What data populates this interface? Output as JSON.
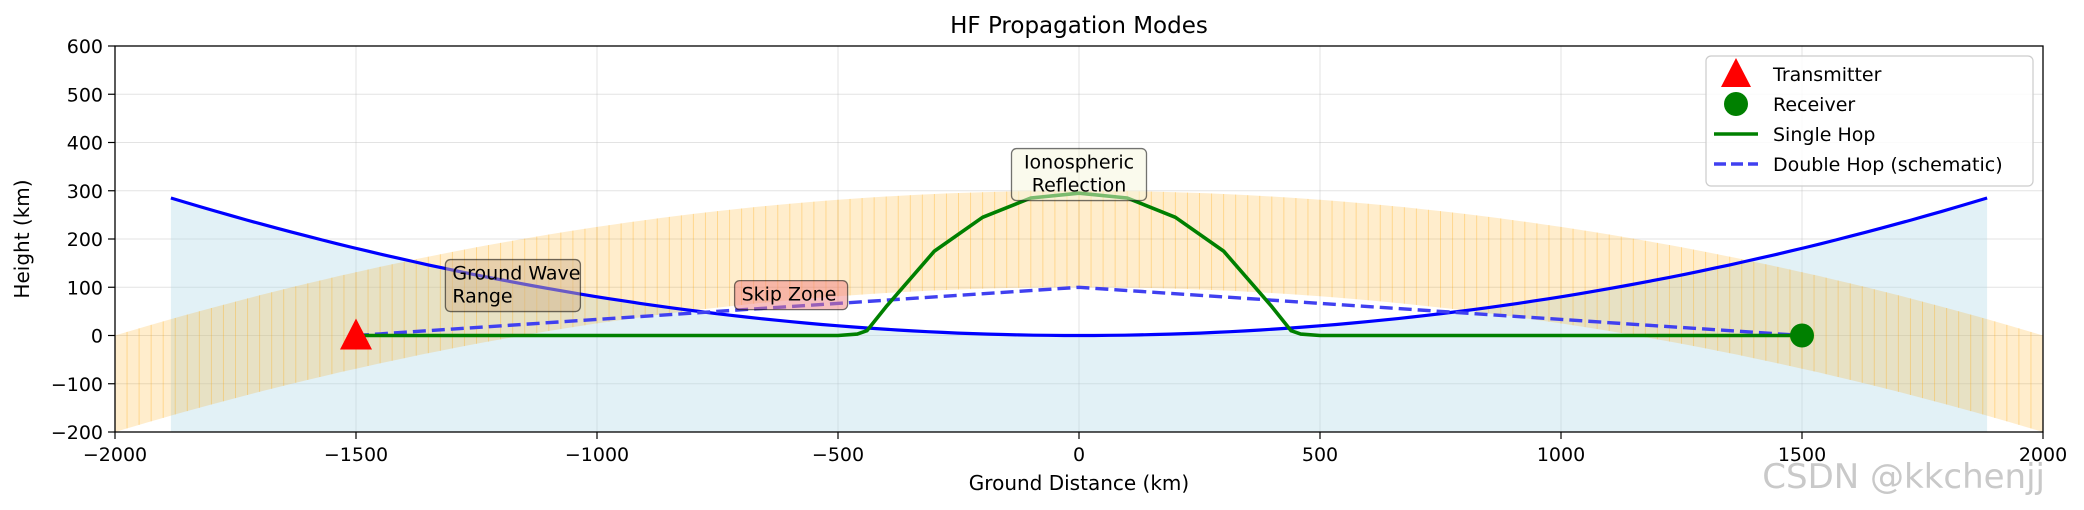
{
  "chart_data": {
    "type": "line",
    "title": "HF Propagation Modes",
    "xlabel": "Ground Distance (km)",
    "ylabel": "Height (km)",
    "xlim": [
      -2000,
      2000
    ],
    "ylim": [
      -200,
      600
    ],
    "xticks": [
      -2000,
      -1500,
      -1000,
      -500,
      0,
      500,
      1000,
      1500,
      2000
    ],
    "yticks": [
      -200,
      -100,
      0,
      100,
      200,
      300,
      400,
      500,
      600
    ],
    "xtick_labels": [
      "−2000",
      "−1500",
      "−1000",
      "−500",
      "0",
      "500",
      "1000",
      "1500",
      "2000"
    ],
    "ytick_labels": [
      "−200",
      "−100",
      "0",
      "100",
      "200",
      "300",
      "400",
      "500",
      "600"
    ],
    "grid": true,
    "earth_surface": {
      "name": "Earth surface (curved)",
      "color": "#0000ff",
      "fill_color": "#add8e6",
      "x_range": [
        -1884,
        1884
      ],
      "y_at_center": 0,
      "y_at_edges": 285,
      "fill_bottom": -200
    },
    "ionosphere_band": {
      "name": "Ionosphere layer",
      "color": "#ffa500",
      "x_range": [
        -2000,
        2000
      ],
      "upper_y_center": 300,
      "upper_y_edge": 0,
      "lower_y_center": 100,
      "lower_y_edge": -200
    },
    "transmitter": {
      "label": "Transmitter",
      "x": -1500,
      "y": 0,
      "color": "#ff0000"
    },
    "receiver": {
      "label": "Receiver",
      "x": 1500,
      "y": 0,
      "color": "#008000"
    },
    "series": [
      {
        "name": "Single Hop",
        "color": "#008000",
        "style": "solid",
        "x": [
          -1500,
          -500,
          -460,
          -440,
          -400,
          -300,
          -200,
          -100,
          0,
          100,
          200,
          300,
          400,
          440,
          460,
          500,
          1500
        ],
        "y": [
          0,
          0,
          3,
          10,
          60,
          175,
          245,
          285,
          295,
          285,
          245,
          175,
          60,
          10,
          3,
          0,
          0
        ]
      },
      {
        "name": "Double Hop (schematic)",
        "color": "#4040f0",
        "style": "dashed",
        "x": [
          -1500,
          0,
          1500
        ],
        "y": [
          0,
          100,
          0
        ]
      }
    ],
    "annotations": [
      {
        "lines": [
          "Ground Wave",
          "Range"
        ],
        "x": -1300,
        "y": 60,
        "box_color": "#d2b48c",
        "align": "left"
      },
      {
        "lines": [
          "Skip Zone"
        ],
        "x": -700,
        "y": 64,
        "box_color": "#f08080",
        "align": "left"
      },
      {
        "lines": [
          "Ionospheric",
          "Reflection"
        ],
        "x": 0,
        "y": 290,
        "box_color": "#f5f5dc",
        "align": "center"
      }
    ],
    "legend": {
      "position": "upper right",
      "entries": [
        {
          "label": "Transmitter",
          "kind": "triangle",
          "color": "#ff0000"
        },
        {
          "label": "Receiver",
          "kind": "circle",
          "color": "#008000"
        },
        {
          "label": "Single Hop",
          "kind": "line",
          "color": "#008000"
        },
        {
          "label": "Double Hop (schematic)",
          "kind": "dashed",
          "color": "#4040f0"
        }
      ]
    }
  },
  "watermark": "CSDN @kkchenjj"
}
